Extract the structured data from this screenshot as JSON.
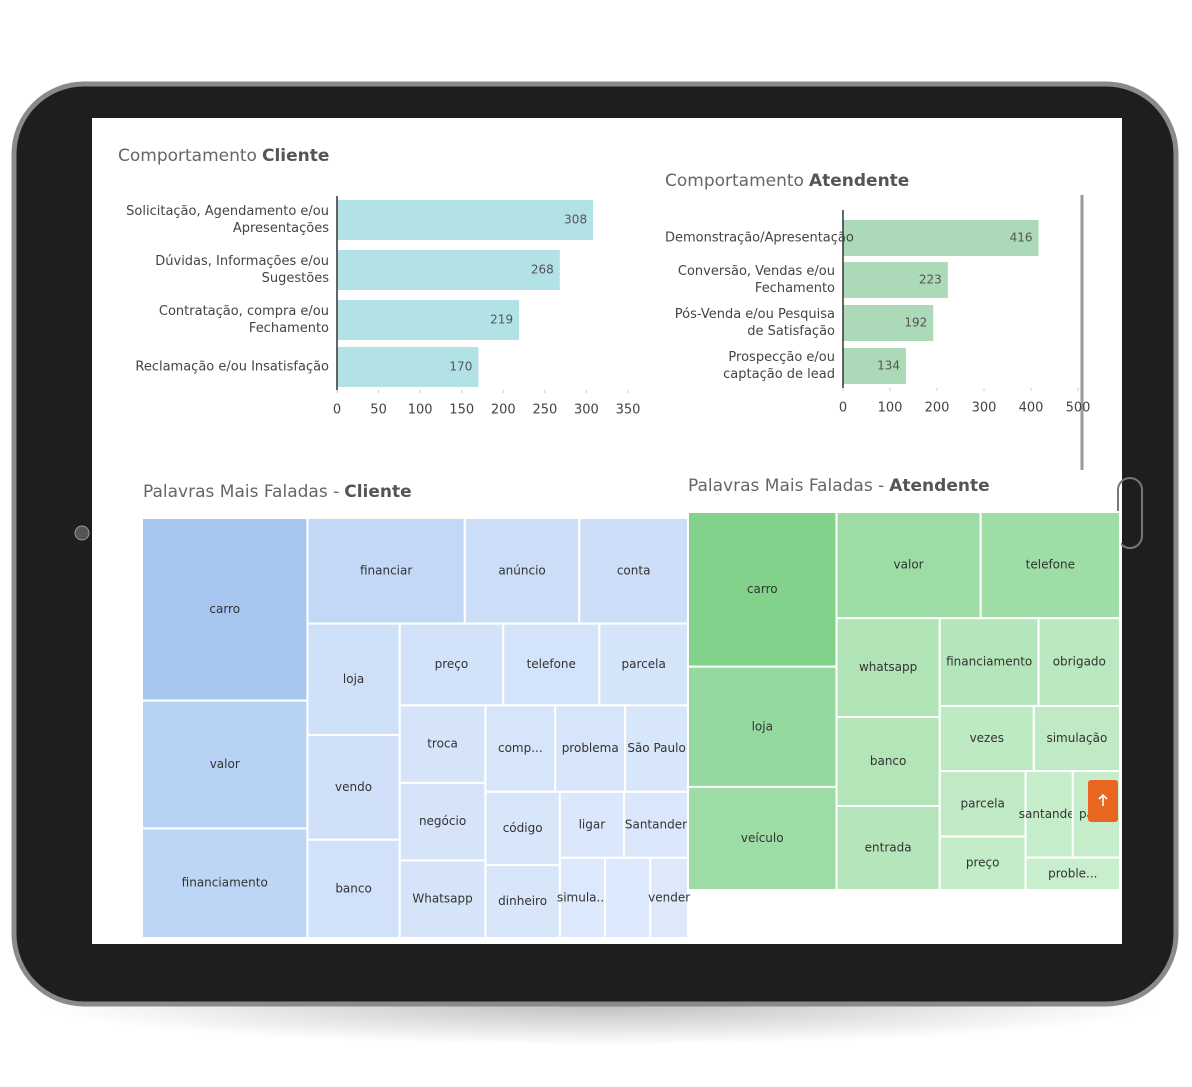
{
  "chart_data": [
    {
      "type": "barh",
      "title_parts": [
        "Comportamento",
        "Cliente"
      ],
      "categories": [
        "Solicitação, Agendamento e/ou Apresentações",
        "Dúvidas, Informações e/ou Sugestões",
        "Contratação, compra e/ou Fechamento",
        "Reclamação e/ou Insatisfação"
      ],
      "values": [
        308,
        268,
        219,
        170
      ],
      "color": "#b2e2e6",
      "xlim": [
        0,
        350
      ],
      "xticks": [
        0,
        50,
        100,
        150,
        200,
        250,
        300,
        350
      ]
    },
    {
      "type": "barh",
      "title_parts": [
        "Comportamento",
        "Atendente"
      ],
      "categories": [
        "Demonstração/Apresentação",
        "Conversão, Vendas e/ou Fechamento",
        "Pós-Venda e/ou Pesquisa de Satisfação",
        "Prospecção e/ou captação de lead"
      ],
      "values": [
        416,
        223,
        192,
        134
      ],
      "color": "#acd9b8",
      "xlim": [
        0,
        500
      ],
      "xticks": [
        0,
        100,
        200,
        300,
        400,
        500
      ]
    },
    {
      "type": "treemap",
      "title_parts": [
        "Palavras Mais Faladas -",
        "Cliente"
      ],
      "categories": [
        "carro",
        "valor",
        "financiamento",
        "financiar",
        "anúncio",
        "conta",
        "loja",
        "vendo",
        "banco",
        "preço",
        "telefone",
        "parcela",
        "troca",
        "negócio",
        "Whatsapp",
        "comp...",
        "problema",
        "São Paulo",
        "código",
        "dinheiro",
        "ligar",
        "Santander",
        "simula...",
        null,
        "vender"
      ],
      "values": [
        100,
        70,
        60,
        55,
        40,
        38,
        34,
        32,
        30,
        28,
        26,
        24,
        22,
        22,
        22,
        20,
        20,
        18,
        18,
        18,
        14,
        14,
        12,
        12,
        10
      ],
      "colors": [
        "#a6c6f0",
        "#dde9fb"
      ]
    },
    {
      "type": "treemap",
      "title_parts": [
        "Palavras Mais Faladas -",
        "Atendente"
      ],
      "categories": [
        "carro",
        "loja",
        "veículo",
        "valor",
        "telefone",
        "whatsapp",
        "banco",
        "entrada",
        "financiamento",
        "obrigado",
        "vezes",
        "simulação",
        "parcela",
        "preço",
        "santander",
        "pagar",
        "proble..."
      ],
      "values": [
        90,
        70,
        60,
        60,
        58,
        40,
        36,
        34,
        34,
        28,
        24,
        22,
        22,
        18,
        16,
        16,
        12
      ],
      "colors": [
        "#82d28c",
        "#c9eecd"
      ]
    }
  ]
}
